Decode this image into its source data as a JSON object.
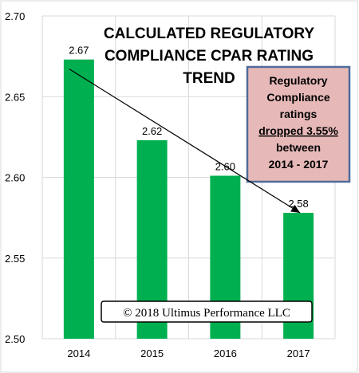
{
  "chart_data": {
    "type": "bar",
    "title_lines": [
      "CALCULATED REGULATORY",
      "COMPLIANCE CPAR RATING",
      "TREND"
    ],
    "categories": [
      "2014",
      "2015",
      "2016",
      "2017"
    ],
    "values": [
      2.673,
      2.623,
      2.601,
      2.578
    ],
    "data_labels": [
      "2.67",
      "2.62",
      "2.60",
      "2.58"
    ],
    "y_ticks": [
      "2.50",
      "2.55",
      "2.60",
      "2.65",
      "2.70"
    ],
    "ylim": [
      2.5,
      2.7
    ],
    "grid": true,
    "bar_color": "#00b050",
    "trend_arrow": true,
    "xlabel": "",
    "ylabel": ""
  },
  "callout": {
    "lines": [
      "Regulatory",
      "Compliance",
      "ratings",
      "dropped 3.55%",
      "between",
      "2014 - 2017"
    ],
    "background": "#e6b9b8",
    "border": "#4f6b9a"
  },
  "copyright": "© 2018 Ultimus Performance LLC"
}
